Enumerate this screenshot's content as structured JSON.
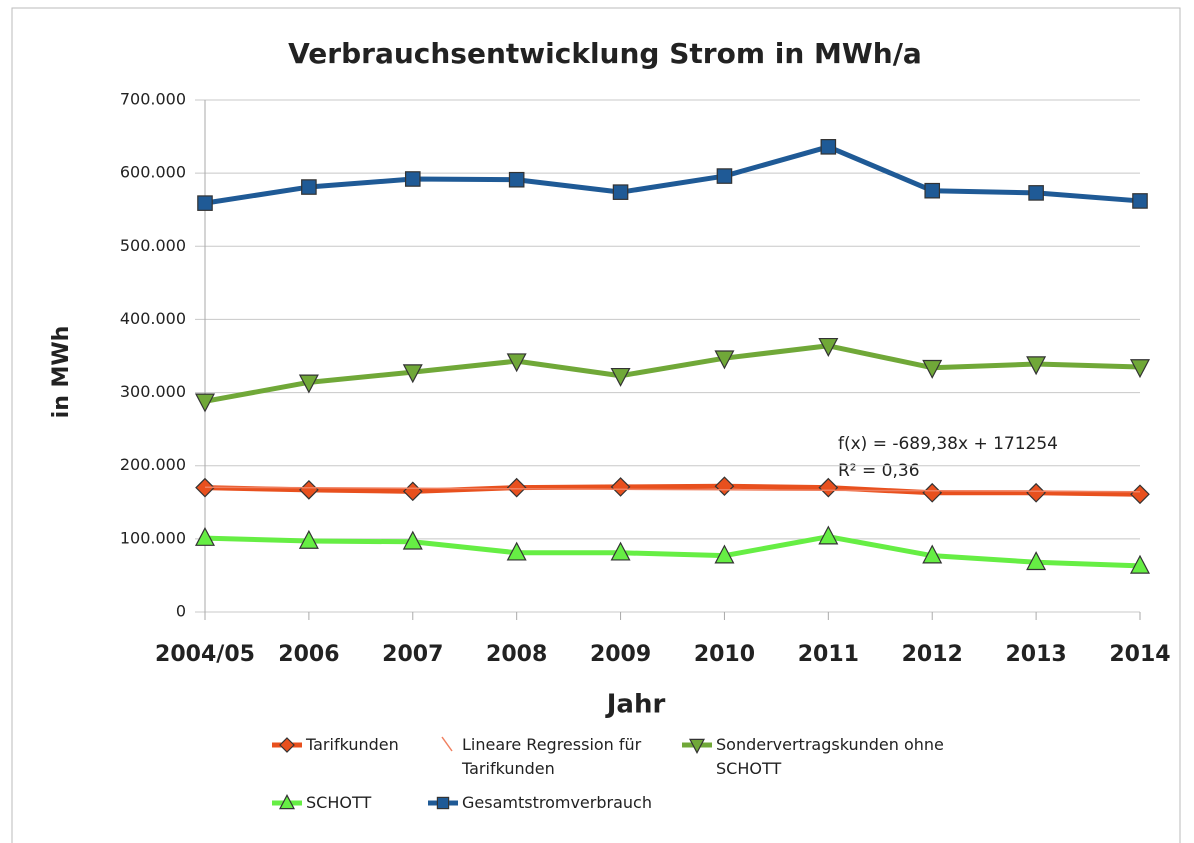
{
  "chart_data": {
    "type": "line",
    "title": "Verbrauchsentwicklung Strom in MWh/a",
    "x_label": "Jahr",
    "y_label": "in MWh",
    "categories": [
      "2004/05",
      "2006",
      "2007",
      "2008",
      "2009",
      "2010",
      "2011",
      "2012",
      "2013",
      "2014"
    ],
    "series": [
      {
        "name": "Tarifkunden",
        "color": "#e8501e",
        "marker": "diamond",
        "values": [
          170000,
          167000,
          165000,
          170000,
          171000,
          172000,
          170000,
          163000,
          163000,
          161000
        ]
      },
      {
        "name": "Lineare Regression für Tarifkunden",
        "color": "#f08060",
        "marker": "none",
        "values": [
          170565,
          169875,
          169186,
          168497,
          167807,
          167118,
          166429,
          165739,
          165050,
          164360
        ]
      },
      {
        "name": "Sondervertragskunden ohne SCHOTT",
        "color": "#70a838",
        "marker": "triangle-down",
        "values": [
          288000,
          314000,
          328000,
          343000,
          323000,
          347000,
          364000,
          334000,
          339000,
          335000
        ]
      },
      {
        "name": "SCHOTT",
        "color": "#66ee44",
        "marker": "triangle-up",
        "values": [
          101000,
          97000,
          96000,
          81000,
          81000,
          77000,
          103000,
          77000,
          68000,
          63000
        ]
      },
      {
        "name": "Gesamtstromverbrauch",
        "color": "#1f5a96",
        "marker": "square",
        "values": [
          559000,
          581000,
          592000,
          591000,
          574000,
          596000,
          636000,
          576000,
          573000,
          562000
        ]
      }
    ],
    "annotations": [
      "f(x) = -689,38x + 171254",
      "R² = 0,36"
    ],
    "ylim": [
      0,
      700000
    ],
    "yticks": [
      0,
      {
        "value": 100000,
        "label": "100.000"
      },
      {
        "value": 200000,
        "label": "200.000"
      },
      {
        "value": 300000,
        "label": "300.000"
      },
      {
        "value": 400000,
        "label": "400.000"
      },
      {
        "value": 500000,
        "label": "500.000"
      },
      {
        "value": 600000,
        "label": "600.000"
      },
      {
        "value": 700000,
        "label": "700.000"
      }
    ],
    "grid": true
  }
}
